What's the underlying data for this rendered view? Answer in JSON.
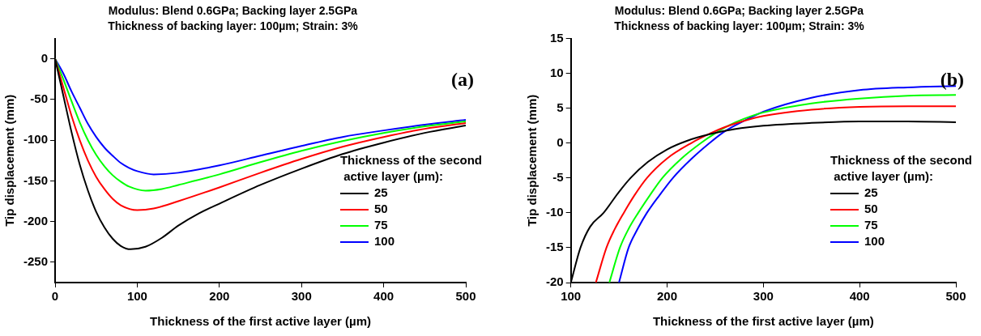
{
  "chart_data": [
    {
      "type": "line",
      "title": "Modulus: Blend 0.6GPa; Backing layer 2.5GPa",
      "subtitle": "Thickness of backing layer: 100µm; Strain: 3%",
      "xlabel": "Thickness of the first active layer (µm)",
      "ylabel": "Tip displacement (mm)",
      "legend_title": "Thickness of the second active layer (µm):",
      "annotations": [
        "(a)"
      ],
      "xlim": [
        0,
        500
      ],
      "xticks": [
        0,
        100,
        200,
        300,
        400,
        500
      ],
      "ylim": [
        -275,
        25
      ],
      "yticks": [
        -250,
        -200,
        -150,
        -100,
        -50,
        0
      ],
      "grid": false,
      "legend": "bottom right",
      "series": [
        {
          "name": "25",
          "color": "#000000",
          "x": [
            0,
            10,
            20,
            30,
            40,
            50,
            60,
            70,
            80,
            92,
            110,
            130,
            150,
            175,
            200,
            250,
            300,
            350,
            400,
            450,
            500
          ],
          "values": [
            0,
            -45,
            -90,
            -130,
            -162,
            -188,
            -207,
            -221,
            -230,
            -234,
            -231,
            -220,
            -205,
            -190,
            -178,
            -155,
            -135,
            -117,
            -103,
            -91,
            -82
          ]
        },
        {
          "name": "50",
          "color": "#ff0000",
          "x": [
            0,
            10,
            20,
            30,
            40,
            50,
            60,
            70,
            80,
            100,
            120,
            150,
            200,
            250,
            300,
            350,
            400,
            450,
            500
          ],
          "values": [
            0,
            -35,
            -70,
            -100,
            -125,
            -145,
            -160,
            -172,
            -180,
            -186,
            -184,
            -175,
            -158,
            -140,
            -123,
            -108,
            -96,
            -86,
            -79
          ]
        },
        {
          "name": "75",
          "color": "#00ff00",
          "x": [
            0,
            10,
            20,
            30,
            40,
            50,
            60,
            70,
            80,
            90,
            110,
            130,
            150,
            200,
            250,
            300,
            350,
            400,
            450,
            500
          ],
          "values": [
            0,
            -25,
            -52,
            -78,
            -100,
            -118,
            -132,
            -143,
            -151,
            -157,
            -162,
            -160,
            -155,
            -142,
            -127,
            -113,
            -101,
            -91,
            -83,
            -77
          ]
        },
        {
          "name": "100",
          "color": "#0000ff",
          "x": [
            0,
            10,
            20,
            30,
            40,
            50,
            60,
            70,
            80,
            90,
            100,
            120,
            150,
            200,
            250,
            300,
            350,
            400,
            450,
            500
          ],
          "values": [
            0,
            -18,
            -40,
            -60,
            -80,
            -96,
            -109,
            -119,
            -128,
            -134,
            -138,
            -142,
            -140,
            -131,
            -119,
            -107,
            -96,
            -88,
            -81,
            -75
          ]
        }
      ]
    },
    {
      "type": "line",
      "title": "Modulus: Blend 0.6GPa; Backing layer 2.5GPa",
      "subtitle": "Thickness of backing layer: 100µm; Strain: 3%",
      "xlabel": "Thickness of the first active layer (µm)",
      "ylabel": "Tip displacement (mm)",
      "legend_title": "Thickness of the second active layer (µm):",
      "annotations": [
        "(b)"
      ],
      "xlim": [
        100,
        500
      ],
      "xticks": [
        100,
        200,
        300,
        400,
        500
      ],
      "ylim": [
        -20,
        15
      ],
      "yticks": [
        -20,
        -15,
        -10,
        -5,
        0,
        5,
        10,
        15
      ],
      "grid": false,
      "legend": "bottom right",
      "series": [
        {
          "name": "25",
          "color": "#000000",
          "x": [
            100,
            110,
            120,
            134,
            150,
            162,
            180,
            200,
            220,
            245,
            270,
            300,
            350,
            400,
            450,
            500
          ],
          "values": [
            -20,
            -15,
            -12,
            -10,
            -7,
            -5,
            -2.7,
            -0.9,
            0.3,
            1.3,
            2.0,
            2.5,
            2.9,
            3.1,
            3.1,
            3.0
          ]
        },
        {
          "name": "50",
          "color": "#ff0000",
          "x": [
            126,
            137,
            145,
            155,
            166,
            179,
            200,
            225,
            245,
            260,
            280,
            300,
            350,
            400,
            450,
            500
          ],
          "values": [
            -20,
            -15,
            -12.5,
            -10,
            -7.5,
            -5,
            -2.2,
            0,
            1.4,
            2.3,
            3.2,
            3.9,
            4.8,
            5.2,
            5.3,
            5.3
          ]
        },
        {
          "name": "75",
          "color": "#00ff00",
          "x": [
            140,
            151,
            160,
            170,
            182,
            195,
            215,
            235,
            250,
            265,
            280,
            300,
            350,
            400,
            450,
            500
          ],
          "values": [
            -20,
            -15,
            -12.3,
            -10,
            -7.5,
            -5,
            -2.2,
            0,
            1.4,
            2.6,
            3.5,
            4.4,
            5.7,
            6.4,
            6.8,
            6.9
          ]
        },
        {
          "name": "100",
          "color": "#0000ff",
          "x": [
            150,
            160,
            169,
            179,
            192,
            206,
            225,
            244,
            260,
            280,
            300,
            350,
            400,
            450,
            500
          ],
          "values": [
            -20,
            -15,
            -12.4,
            -10,
            -7.5,
            -5,
            -2.3,
            0,
            1.7,
            3.2,
            4.5,
            6.5,
            7.6,
            8.0,
            8.2
          ]
        }
      ]
    }
  ]
}
